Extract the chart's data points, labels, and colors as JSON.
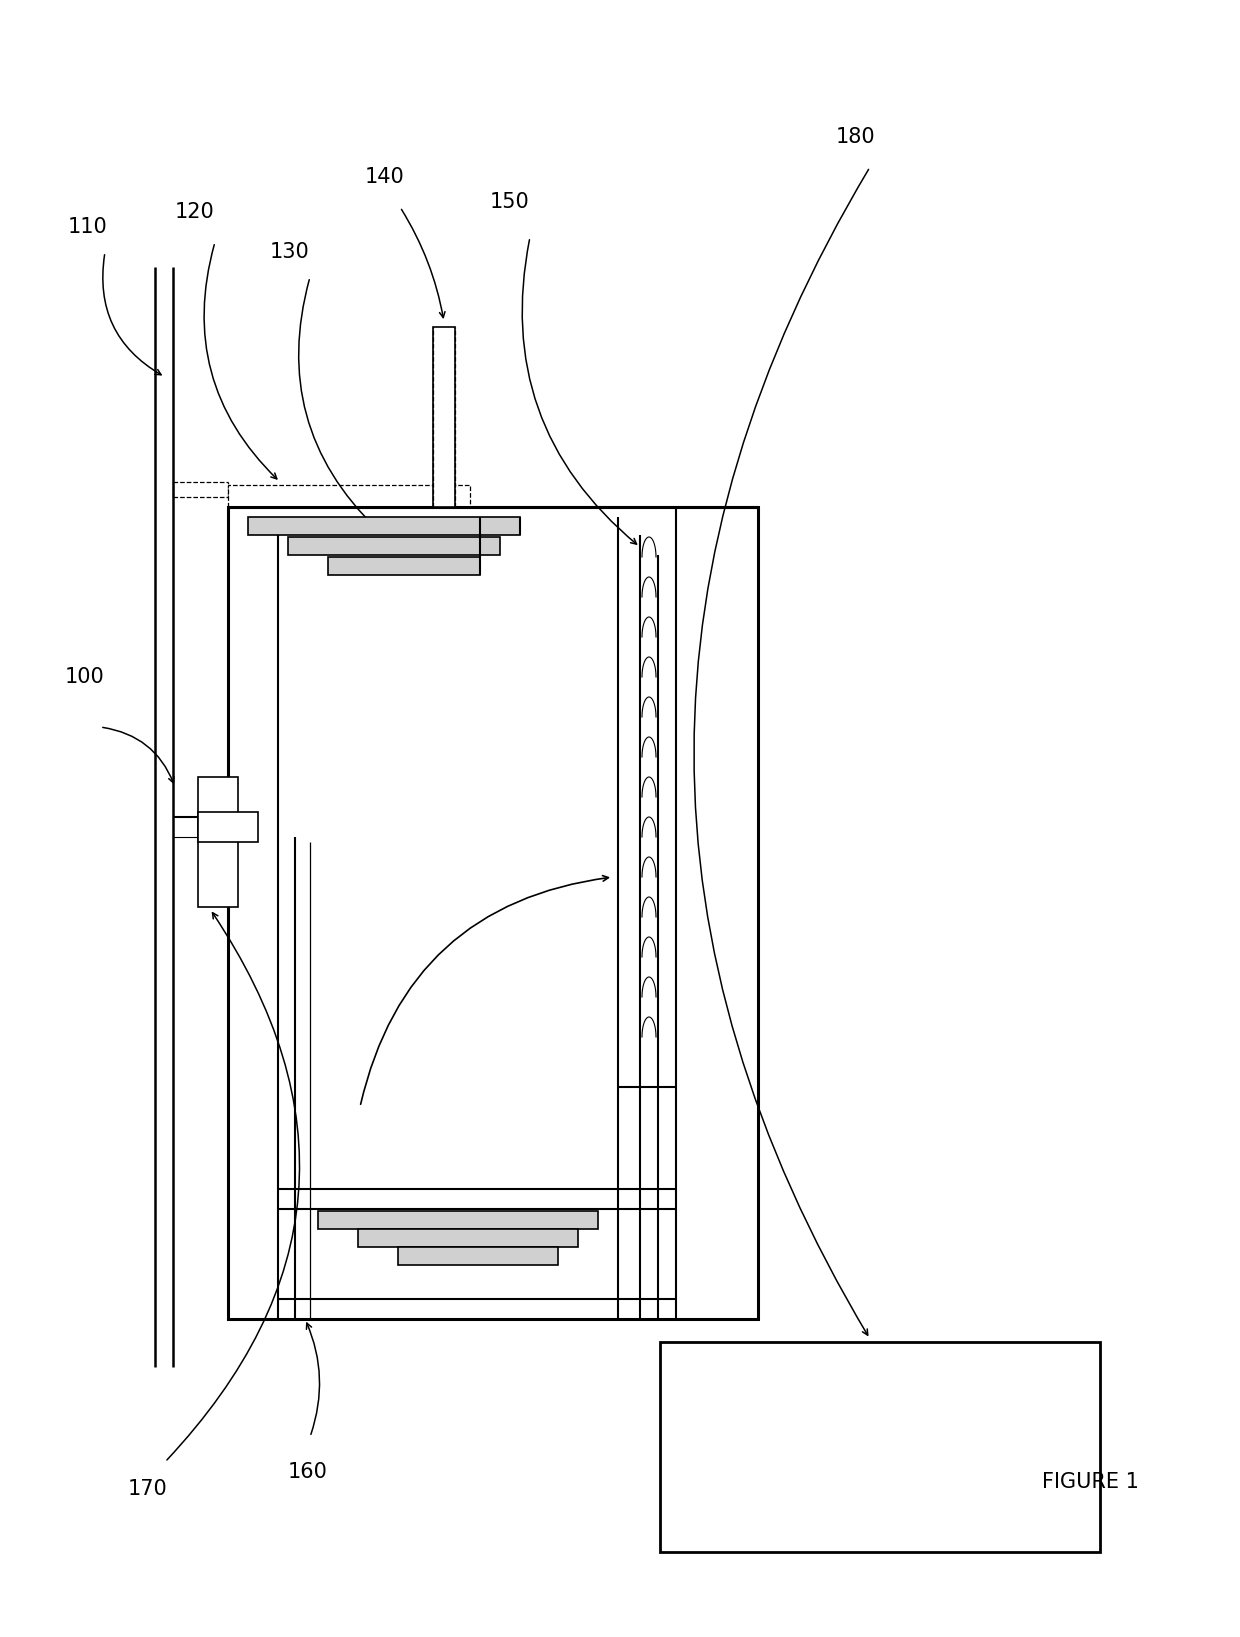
{
  "fig_width": 12.4,
  "fig_height": 16.37,
  "dpi": 100,
  "bg_color": "#ffffff",
  "lc": "#000000",
  "lw": 1.5,
  "tlw": 0.8,
  "thklw": 2.5,
  "figure_label": "FIGURE 1"
}
